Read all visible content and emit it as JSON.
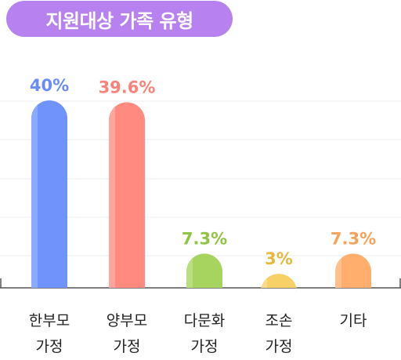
{
  "title": "지원대상 가족 유형",
  "chart_data": {
    "type": "bar",
    "title": "지원대상 가족 유형",
    "categories": [
      {
        "line1": "한부모",
        "line2": "가정"
      },
      {
        "line1": "양부모",
        "line2": "가정"
      },
      {
        "line1": "다문화",
        "line2": "가정"
      },
      {
        "line1": "조손",
        "line2": "가정"
      },
      {
        "line1": "기타",
        "line2": ""
      }
    ],
    "values": [
      40,
      39.6,
      7.3,
      3,
      7.3
    ],
    "value_labels": [
      "40%",
      "39.6%",
      "7.3%",
      "3%",
      "7.3%"
    ],
    "colors": [
      "#6f93fb",
      "#ff8a80",
      "#a6d45e",
      "#f8d068",
      "#ffae6e"
    ],
    "highlight_colors": [
      "#8aa9ff",
      "#ffa59d",
      "#badf80",
      "#fadc8a",
      "#ffc08c"
    ],
    "label_colors": [
      "#6b8cf6",
      "#f88479",
      "#8fc443",
      "#e6b83c",
      "#f5a25b"
    ],
    "ylim": [
      0,
      40
    ],
    "grid": true
  }
}
